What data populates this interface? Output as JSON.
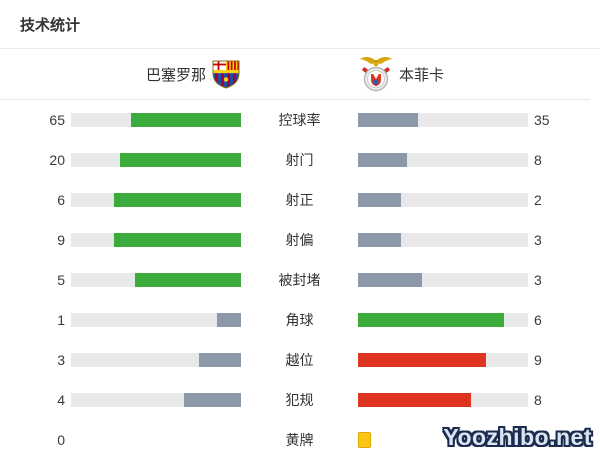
{
  "title": "技术统计",
  "teams": {
    "home": {
      "name": "巴塞罗那"
    },
    "away": {
      "name": "本菲卡"
    }
  },
  "colors": {
    "green": "#3bab3b",
    "slate": "#8c99a9",
    "red": "#df3420",
    "track": "#e9e9e9",
    "card_yellow": "#fac616",
    "text": "#333333"
  },
  "watermark": "Yoozhibo.net",
  "stats": {
    "rows": [
      {
        "type": "bar",
        "label": "控球率",
        "home": {
          "value": "65",
          "color": "green"
        },
        "away": {
          "value": "35",
          "color": "slate"
        }
      },
      {
        "type": "bar",
        "label": "射门",
        "home": {
          "value": "20",
          "color": "green"
        },
        "away": {
          "value": "8",
          "color": "slate"
        }
      },
      {
        "type": "bar",
        "label": "射正",
        "home": {
          "value": "6",
          "color": "green"
        },
        "away": {
          "value": "2",
          "color": "slate"
        }
      },
      {
        "type": "bar",
        "label": "射偏",
        "home": {
          "value": "9",
          "color": "green"
        },
        "away": {
          "value": "3",
          "color": "slate"
        }
      },
      {
        "type": "bar",
        "label": "被封堵",
        "home": {
          "value": "5",
          "color": "green"
        },
        "away": {
          "value": "3",
          "color": "slate"
        }
      },
      {
        "type": "bar",
        "label": "角球",
        "home": {
          "value": "1",
          "color": "slate"
        },
        "away": {
          "value": "6",
          "color": "green"
        }
      },
      {
        "type": "bar",
        "label": "越位",
        "home": {
          "value": "3",
          "color": "slate"
        },
        "away": {
          "value": "9",
          "color": "red"
        }
      },
      {
        "type": "bar",
        "label": "犯规",
        "home": {
          "value": "4",
          "color": "slate"
        },
        "away": {
          "value": "8",
          "color": "red"
        }
      },
      {
        "type": "cards",
        "label": "黄牌",
        "home": {
          "value": "0",
          "cards": 0
        },
        "away": {
          "value": "1",
          "cards": 1
        }
      }
    ]
  },
  "chart_data": {
    "type": "bar",
    "title": "技术统计",
    "orientation": "horizontal-paired",
    "categories": [
      "控球率",
      "射门",
      "射正",
      "射偏",
      "被封堵",
      "角球",
      "越位",
      "犯规",
      "黄牌"
    ],
    "series": [
      {
        "name": "巴塞罗那",
        "values": [
          65,
          20,
          6,
          9,
          5,
          1,
          3,
          4,
          0
        ]
      },
      {
        "name": "本菲卡",
        "values": [
          35,
          8,
          2,
          3,
          3,
          6,
          9,
          8,
          1
        ]
      }
    ],
    "notes": "每行左右条宽按该项数值占双方之和的比例填充；黄牌行以黄牌图标显示；客队黄牌数值被水印遮挡",
    "legend_position": "top",
    "grid": false
  }
}
